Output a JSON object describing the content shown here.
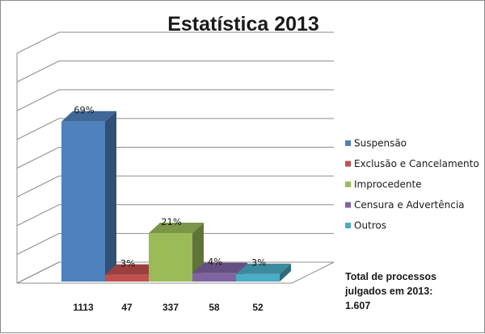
{
  "chart_data": {
    "type": "bar",
    "style": "3d-column",
    "title": "Estatística 2013",
    "categories": [
      "Suspensão",
      "Exclusão e Cancelamento",
      "Improcedente",
      "Censura e Advertência",
      "Outros"
    ],
    "values": [
      1113,
      47,
      337,
      58,
      52
    ],
    "percent_labels": [
      "69%",
      "3%",
      "21%",
      "4%",
      "3%"
    ],
    "colors": [
      "#4f81bd",
      "#c0504d",
      "#9bbb59",
      "#8064a2",
      "#4bacc6"
    ],
    "ylim": [
      0,
      1600
    ],
    "grid": true,
    "legend": "right",
    "xlabel": "",
    "ylabel": ""
  },
  "note_lines": [
    "Total de processos",
    "julgados em 2013:",
    "1.607"
  ]
}
